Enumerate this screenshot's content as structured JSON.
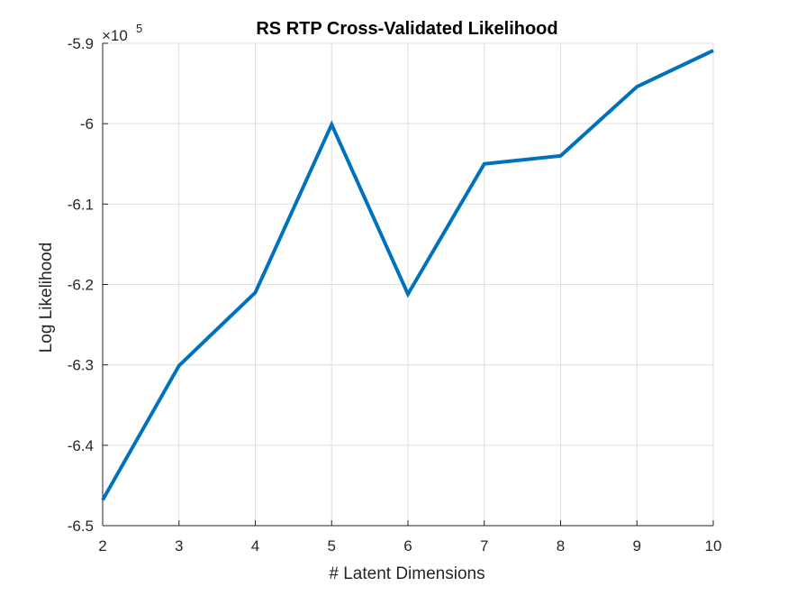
{
  "chart_data": {
    "type": "line",
    "title": "RS RTP Cross-Validated Likelihood",
    "xlabel": "# Latent Dimensions",
    "ylabel": "Log Likelihood",
    "exponent_label": {
      "base": "×10",
      "power": "5"
    },
    "x": [
      2,
      3,
      4,
      5,
      6,
      7,
      8,
      9,
      10
    ],
    "series": [
      {
        "values": [
          -6.468,
          -6.301,
          -6.21,
          -6.001,
          -6.212,
          -6.05,
          -6.04,
          -5.954,
          -5.909
        ],
        "color": "#0072BD"
      }
    ],
    "xlim": [
      2,
      10
    ],
    "ylim": [
      -6.5,
      -5.9
    ],
    "x_ticks": [
      2,
      3,
      4,
      5,
      6,
      7,
      8,
      9,
      10
    ],
    "x_tick_labels": [
      "2",
      "3",
      "4",
      "5",
      "6",
      "7",
      "8",
      "9",
      "10"
    ],
    "y_ticks": [
      -6.5,
      -6.4,
      -6.3,
      -6.2,
      -6.1,
      -6.0,
      -5.9
    ],
    "y_tick_labels": [
      "-6.5",
      "-6.4",
      "-6.3",
      "-6.2",
      "-6.1",
      "-6",
      "-5.9"
    ],
    "grid": true,
    "box": "off"
  }
}
